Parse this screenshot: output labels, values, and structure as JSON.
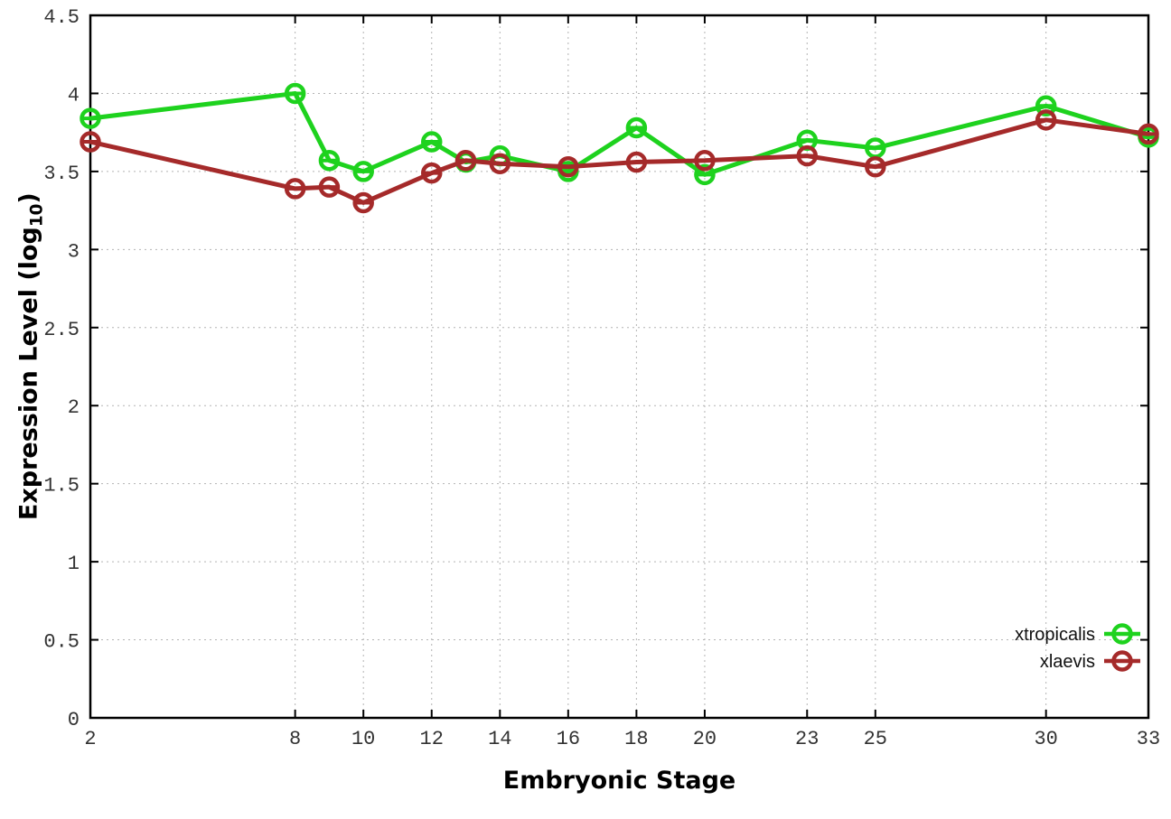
{
  "chart_data": {
    "type": "line",
    "title": "",
    "xlabel": "Embryonic Stage",
    "ylabel": "Expression Level (log10)",
    "ylabel_parts": {
      "main": "Expression Level (log",
      "sub": "10",
      "close": ")"
    },
    "xlim": [
      2,
      33
    ],
    "ylim": [
      0,
      4.5
    ],
    "x_ticks": [
      2,
      8,
      10,
      12,
      14,
      16,
      18,
      20,
      23,
      25,
      30,
      33
    ],
    "y_ticks": [
      0,
      0.5,
      1,
      1.5,
      2,
      2.5,
      3,
      3.5,
      4,
      4.5
    ],
    "grid": true,
    "marker": "open-circle",
    "legend_position": "inside-bottom-right",
    "x": [
      2,
      8,
      9,
      10,
      12,
      13,
      14,
      16,
      18,
      20,
      23,
      25,
      30,
      33
    ],
    "series": [
      {
        "name": "xtropicalis",
        "color": "#1ed21e",
        "values": [
          3.84,
          4.0,
          3.57,
          3.5,
          3.69,
          3.56,
          3.6,
          3.5,
          3.78,
          3.48,
          3.7,
          3.65,
          3.92,
          3.72
        ]
      },
      {
        "name": "xlaevis",
        "color": "#a52a2a",
        "values": [
          3.69,
          3.39,
          3.4,
          3.3,
          3.49,
          3.57,
          3.55,
          3.53,
          3.56,
          3.57,
          3.6,
          3.53,
          3.83,
          3.74
        ]
      }
    ]
  },
  "colors": {
    "background": "#ffffff",
    "axis": "#000000",
    "grid": "#b3b3b3",
    "xtropicalis": "#1ed21e",
    "xlaevis": "#a52a2a"
  }
}
